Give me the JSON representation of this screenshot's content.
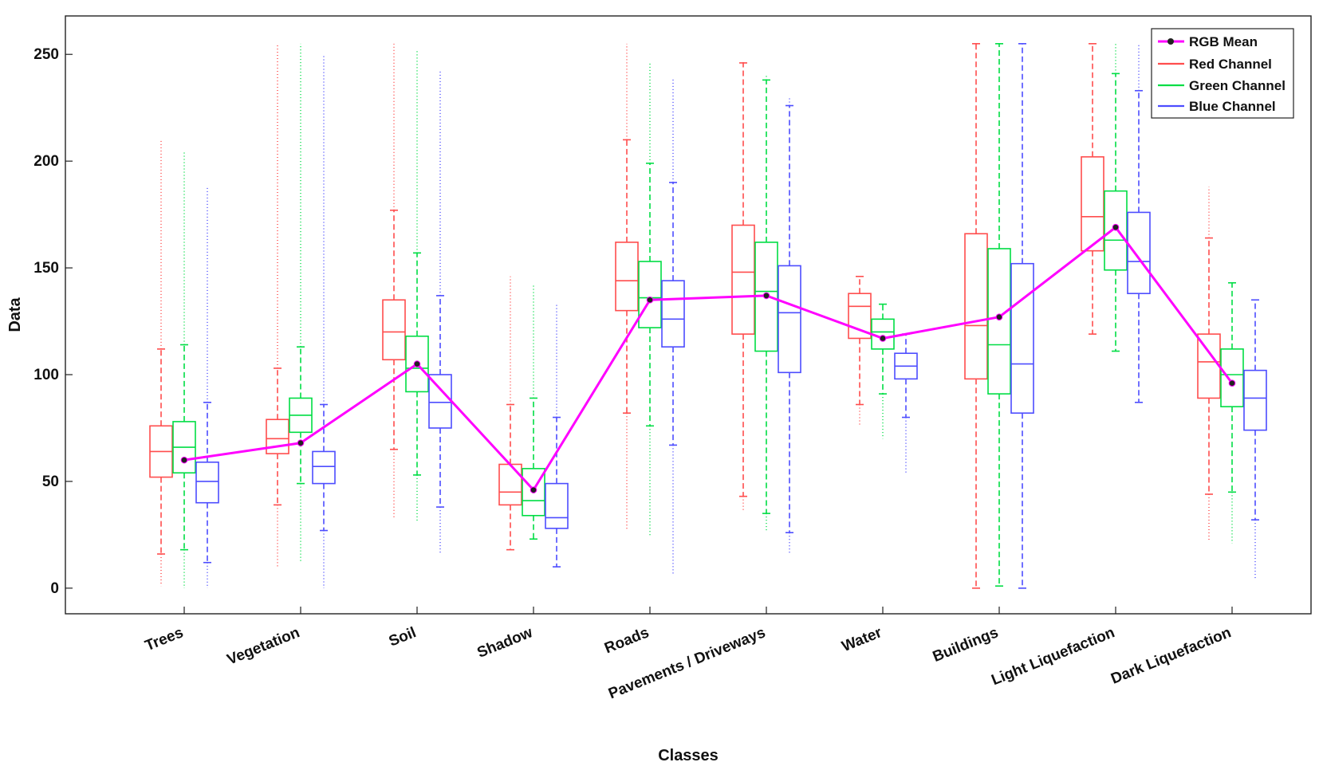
{
  "chart_data": {
    "type": "boxplot",
    "xlabel": "Classes",
    "ylabel": "Data",
    "ylim": [
      -12,
      268
    ],
    "yticks": [
      0,
      50,
      100,
      150,
      200,
      250
    ],
    "grid": false,
    "legend_position": "top-right",
    "colors": {
      "red": "#ff4d4d",
      "green": "#00dd44",
      "blue": "#4d4dff",
      "mean": "#ff00ff",
      "axis": "#222222"
    },
    "legend": [
      {
        "key": "mean",
        "label": "RGB Mean"
      },
      {
        "key": "red",
        "label": "Red Channel"
      },
      {
        "key": "green",
        "label": "Green Channel"
      },
      {
        "key": "blue",
        "label": "Blue Channel"
      }
    ],
    "categories": [
      "Trees",
      "Vegetation",
      "Soil",
      "Shadow",
      "Roads",
      "Pavements / Driveways",
      "Water",
      "Buildings",
      "Light Liquefaction",
      "Dark Liquefaction"
    ],
    "series": [
      {
        "name": "Red Channel",
        "key": "red",
        "boxes": [
          {
            "min": 16,
            "q1": 52,
            "median": 64,
            "q3": 76,
            "max": 112,
            "out_low": 1,
            "out_high": 210
          },
          {
            "min": 39,
            "q1": 63,
            "median": 70,
            "q3": 79,
            "max": 103,
            "out_low": 10,
            "out_high": 255
          },
          {
            "min": 65,
            "q1": 107,
            "median": 120,
            "q3": 135,
            "max": 177,
            "out_low": 33,
            "out_high": 255
          },
          {
            "min": 18,
            "q1": 39,
            "median": 45,
            "q3": 58,
            "max": 86,
            "out_low": 18,
            "out_high": 146
          },
          {
            "min": 82,
            "q1": 130,
            "median": 144,
            "q3": 162,
            "max": 210,
            "out_low": 27,
            "out_high": 255
          },
          {
            "min": 43,
            "q1": 119,
            "median": 148,
            "q3": 170,
            "max": 246,
            "out_low": 36,
            "out_high": 247
          },
          {
            "min": 86,
            "q1": 117,
            "median": 132,
            "q3": 138,
            "max": 146,
            "out_low": 76,
            "out_high": 146
          },
          {
            "min": 0,
            "q1": 98,
            "median": 123,
            "q3": 166,
            "max": 255,
            "out_low": 0,
            "out_high": 255
          },
          {
            "min": 119,
            "q1": 158,
            "median": 174,
            "q3": 202,
            "max": 255,
            "out_low": 119,
            "out_high": 255
          },
          {
            "min": 44,
            "q1": 89,
            "median": 106,
            "q3": 119,
            "max": 164,
            "out_low": 22,
            "out_high": 188
          }
        ]
      },
      {
        "name": "Green Channel",
        "key": "green",
        "boxes": [
          {
            "min": 18,
            "q1": 54,
            "median": 66,
            "q3": 78,
            "max": 114,
            "out_low": 0,
            "out_high": 204
          },
          {
            "min": 49,
            "q1": 73,
            "median": 81,
            "q3": 89,
            "max": 113,
            "out_low": 12,
            "out_high": 255
          },
          {
            "min": 53,
            "q1": 92,
            "median": 103,
            "q3": 118,
            "max": 157,
            "out_low": 31,
            "out_high": 252
          },
          {
            "min": 23,
            "q1": 34,
            "median": 41,
            "q3": 56,
            "max": 89,
            "out_low": 23,
            "out_high": 142
          },
          {
            "min": 76,
            "q1": 122,
            "median": 136,
            "q3": 153,
            "max": 199,
            "out_low": 24,
            "out_high": 246
          },
          {
            "min": 35,
            "q1": 111,
            "median": 139,
            "q3": 162,
            "max": 238,
            "out_low": 27,
            "out_high": 240
          },
          {
            "min": 91,
            "q1": 112,
            "median": 120,
            "q3": 126,
            "max": 133,
            "out_low": 70,
            "out_high": 133
          },
          {
            "min": 1,
            "q1": 91,
            "median": 114,
            "q3": 159,
            "max": 255,
            "out_low": 1,
            "out_high": 255
          },
          {
            "min": 111,
            "q1": 149,
            "median": 163,
            "q3": 186,
            "max": 241,
            "out_low": 111,
            "out_high": 255
          },
          {
            "min": 45,
            "q1": 85,
            "median": 100,
            "q3": 112,
            "max": 143,
            "out_low": 21,
            "out_high": 143
          }
        ]
      },
      {
        "name": "Blue Channel",
        "key": "blue",
        "boxes": [
          {
            "min": 12,
            "q1": 40,
            "median": 50,
            "q3": 59,
            "max": 87,
            "out_low": 0,
            "out_high": 188
          },
          {
            "min": 27,
            "q1": 49,
            "median": 57,
            "q3": 64,
            "max": 86,
            "out_low": 0,
            "out_high": 250
          },
          {
            "min": 38,
            "q1": 75,
            "median": 87,
            "q3": 100,
            "max": 137,
            "out_low": 16,
            "out_high": 242
          },
          {
            "min": 10,
            "q1": 28,
            "median": 33,
            "q3": 49,
            "max": 80,
            "out_low": 10,
            "out_high": 133
          },
          {
            "min": 67,
            "q1": 113,
            "median": 126,
            "q3": 144,
            "max": 190,
            "out_low": 6,
            "out_high": 239
          },
          {
            "min": 26,
            "q1": 101,
            "median": 129,
            "q3": 151,
            "max": 226,
            "out_low": 16,
            "out_high": 230
          },
          {
            "min": 80,
            "q1": 98,
            "median": 104,
            "q3": 110,
            "max": 119,
            "out_low": 54,
            "out_high": 119
          },
          {
            "min": 0,
            "q1": 82,
            "median": 105,
            "q3": 152,
            "max": 255,
            "out_low": 0,
            "out_high": 255
          },
          {
            "min": 87,
            "q1": 138,
            "median": 153,
            "q3": 176,
            "max": 233,
            "out_low": 87,
            "out_high": 255
          },
          {
            "min": 32,
            "q1": 74,
            "median": 89,
            "q3": 102,
            "max": 135,
            "out_low": 4,
            "out_high": 135
          }
        ]
      }
    ],
    "mean": {
      "name": "RGB Mean",
      "values": [
        60,
        68,
        105,
        46,
        135,
        137,
        117,
        127,
        169,
        96
      ]
    }
  }
}
